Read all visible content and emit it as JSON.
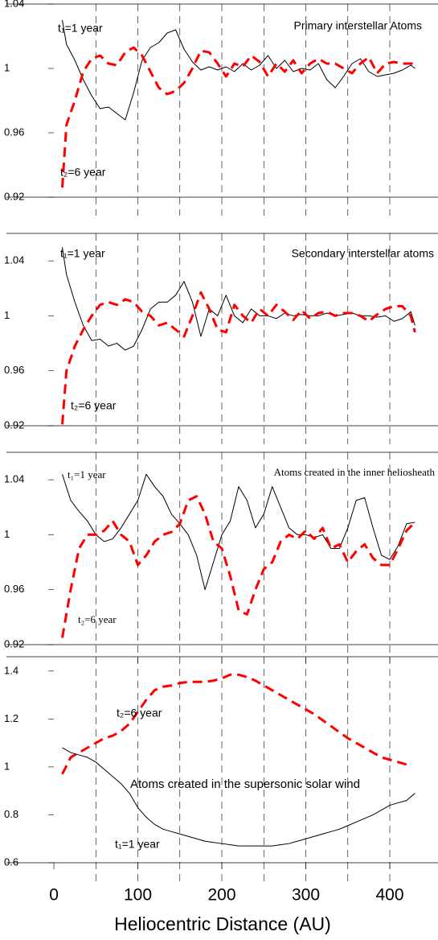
{
  "chart_data": [
    {
      "type": "line",
      "title": "Primary interstellar Atoms",
      "x": [
        10,
        15,
        25,
        35,
        45,
        55,
        65,
        75,
        85,
        95,
        105,
        115,
        125,
        135,
        145,
        155,
        165,
        175,
        185,
        195,
        205,
        215,
        225,
        235,
        245,
        255,
        265,
        275,
        285,
        295,
        305,
        315,
        325,
        335,
        345,
        355,
        365,
        375,
        385,
        395,
        405,
        415,
        425,
        430
      ],
      "series": [
        {
          "name": "t₁=1 year",
          "color": "#000000",
          "dashed": false,
          "values": [
            1.03,
            1.015,
            1.005,
            0.993,
            0.983,
            0.975,
            0.976,
            0.972,
            0.968,
            0.985,
            1.005,
            1.013,
            1.016,
            1.022,
            1.024,
            1.012,
            1.004,
            0.999,
            1.001,
            0.999,
            1.001,
            0.998,
            1.003,
            0.999,
            1.002,
            1.008,
            1.0,
            1.005,
            0.998,
            1.0,
            0.999,
            1.003,
            0.993,
            0.988,
            0.995,
            1.003,
            1.006,
            0.998,
            0.995,
            0.996,
            0.997,
            0.999,
            1.002,
            1.0
          ]
        },
        {
          "name": "t₂=6 year",
          "color": "#ff0000",
          "dashed": true,
          "values": [
            0.926,
            0.965,
            0.98,
            0.998,
            1.006,
            1.008,
            1.003,
            1.002,
            1.01,
            1.013,
            1.008,
            0.998,
            0.988,
            0.984,
            0.986,
            0.991,
            1.0,
            1.011,
            1.01,
            1.003,
            0.995,
            1.003,
            1.001,
            1.008,
            1.004,
            0.995,
            1.003,
            0.998,
            1.005,
            0.997,
            1.003,
            1.006,
            1.003,
            1.003,
            1.0,
            0.997,
            1.003,
            1.007,
            0.997,
            1.003,
            1.004,
            1.003,
            1.003,
            1.003
          ]
        }
      ],
      "xlim": [
        -56.5,
        457.4
      ],
      "ylim": [
        0.92,
        1.04
      ],
      "yticks": [
        0.92,
        0.96,
        1,
        1.04
      ],
      "xgrid": [
        50,
        100,
        150,
        200,
        250,
        300,
        350,
        400
      ]
    },
    {
      "type": "line",
      "title": "Secondary interstellar atoms",
      "x": [
        10,
        15,
        25,
        35,
        45,
        55,
        65,
        75,
        85,
        95,
        105,
        115,
        125,
        135,
        145,
        155,
        165,
        175,
        185,
        195,
        205,
        215,
        225,
        235,
        245,
        255,
        265,
        275,
        285,
        295,
        305,
        315,
        325,
        335,
        345,
        355,
        365,
        375,
        385,
        395,
        405,
        415,
        425,
        430
      ],
      "series": [
        {
          "name": "t₁=1 year",
          "color": "#000000",
          "dashed": false,
          "values": [
            1.05,
            1.03,
            1.01,
            0.993,
            0.982,
            0.983,
            0.978,
            0.98,
            0.975,
            0.978,
            0.99,
            1.005,
            1.01,
            1.01,
            1.015,
            1.025,
            1.01,
            0.985,
            1.005,
            1.0,
            1.015,
            1.0,
            0.995,
            1.005,
            1.0,
            1.0,
            0.998,
            1.002,
            1.0,
            1.001,
            1.0,
            1.0,
            1.002,
            1.0,
            1.001,
            1.002,
            1.0,
            1.0,
            0.999,
            1.0,
            0.996,
            0.998,
            1.003,
            0.993
          ]
        },
        {
          "name": "t₂=6 year",
          "color": "#ff0000",
          "dashed": true,
          "values": [
            0.921,
            0.96,
            0.978,
            0.99,
            1.0,
            1.008,
            1.01,
            1.008,
            1.012,
            1.01,
            1.003,
            1.0,
            0.993,
            0.995,
            0.99,
            0.985,
            1.0,
            1.017,
            1.005,
            0.99,
            0.988,
            1.008,
            1.0,
            0.995,
            1.005,
            1.0,
            1.008,
            1.003,
            0.997,
            1.004,
            0.998,
            1.002,
            1.003,
            1.0,
            1.002,
            1.002,
            1.0,
            0.996,
            1.001,
            1.005,
            1.007,
            1.007,
            1.0,
            0.988
          ]
        }
      ],
      "xlim": [
        -56.5,
        457.4
      ],
      "ylim": [
        0.92,
        1.06
      ],
      "yticks": [
        0.92,
        0.96,
        1,
        1.04
      ],
      "xgrid": [
        50,
        100,
        150,
        200,
        250,
        300,
        350,
        400
      ]
    },
    {
      "type": "line",
      "title": "Atoms created in the inner heliosheath",
      "x": [
        10,
        20,
        30,
        40,
        50,
        60,
        70,
        80,
        90,
        100,
        110,
        120,
        130,
        140,
        150,
        160,
        170,
        180,
        190,
        200,
        210,
        220,
        230,
        240,
        250,
        260,
        270,
        280,
        290,
        300,
        310,
        320,
        330,
        340,
        350,
        360,
        370,
        380,
        390,
        400,
        410,
        420,
        430
      ],
      "series": [
        {
          "name": "t₁=1 year",
          "color": "#000000",
          "dashed": false,
          "values": [
            1.044,
            1.025,
            1.017,
            1.01,
            1.0,
            0.995,
            0.997,
            1.005,
            1.015,
            1.025,
            1.044,
            1.035,
            1.028,
            1.015,
            1.008,
            1.0,
            0.985,
            0.96,
            0.98,
            1.0,
            1.01,
            1.035,
            1.025,
            1.005,
            1.015,
            1.035,
            1.02,
            1.005,
            1.0,
            1.0,
            0.998,
            1.0,
            0.99,
            0.99,
            1.005,
            1.025,
            1.027,
            1.005,
            0.985,
            0.982,
            0.992,
            1.008,
            1.009
          ]
        },
        {
          "name": "t₂=6 year",
          "color": "#ff0000",
          "dashed": true,
          "values": [
            0.925,
            0.96,
            0.99,
            1.0,
            1.0,
            1.003,
            1.01,
            1.0,
            0.995,
            0.978,
            0.985,
            0.995,
            1.0,
            1.002,
            1.008,
            1.025,
            1.028,
            1.015,
            0.995,
            0.99,
            0.97,
            0.945,
            0.942,
            0.96,
            0.975,
            0.98,
            0.995,
            1.0,
            0.997,
            1.003,
            0.997,
            1.005,
            0.99,
            0.993,
            0.98,
            0.988,
            0.993,
            0.983,
            0.978,
            0.978,
            0.99,
            1.003,
            1.009
          ]
        }
      ],
      "xlim": [
        -56.5,
        457.4
      ],
      "ylim": [
        0.92,
        1.06
      ],
      "yticks": [
        0.92,
        0.96,
        1,
        1.04
      ],
      "xgrid": [
        50,
        100,
        150,
        200,
        250,
        300,
        350,
        400
      ]
    },
    {
      "type": "line",
      "title": "Atoms created in the supersonic solar wind",
      "xlabel": "Heliocentric Distance (AU)",
      "x": [
        10,
        20,
        30,
        40,
        50,
        60,
        70,
        80,
        90,
        100,
        110,
        120,
        130,
        140,
        150,
        160,
        170,
        180,
        190,
        200,
        210,
        220,
        230,
        240,
        250,
        260,
        270,
        280,
        290,
        300,
        310,
        320,
        330,
        340,
        350,
        360,
        370,
        380,
        390,
        400,
        410,
        420,
        430
      ],
      "series": [
        {
          "name": "t₂=6 year",
          "color": "#ff0000",
          "dashed": true,
          "values": [
            0.97,
            1.04,
            1.06,
            1.08,
            1.1,
            1.12,
            1.13,
            1.15,
            1.18,
            1.23,
            1.28,
            1.32,
            1.335,
            1.34,
            1.35,
            1.355,
            1.355,
            1.355,
            1.36,
            1.37,
            1.385,
            1.385,
            1.375,
            1.36,
            1.34,
            1.32,
            1.3,
            1.28,
            1.26,
            1.24,
            1.22,
            1.195,
            1.17,
            1.145,
            1.12,
            1.1,
            1.08,
            1.06,
            1.04,
            1.03,
            1.02,
            1.01,
            null
          ]
        },
        {
          "name": "t₁=1 year",
          "color": "#000000",
          "dashed": false,
          "values": [
            1.08,
            1.06,
            1.05,
            1.04,
            1.02,
            0.99,
            0.96,
            0.93,
            0.89,
            0.83,
            0.79,
            0.76,
            0.74,
            0.73,
            0.72,
            0.71,
            0.7,
            0.69,
            0.685,
            0.68,
            0.675,
            0.67,
            0.67,
            0.67,
            0.67,
            0.67,
            0.675,
            0.68,
            0.69,
            0.7,
            0.71,
            0.72,
            0.73,
            0.74,
            0.755,
            0.77,
            0.785,
            0.8,
            0.82,
            0.84,
            0.85,
            0.86,
            0.89
          ]
        }
      ],
      "xlim": [
        -56.5,
        457.4
      ],
      "ylim": [
        0.6,
        1.46
      ],
      "yticks": [
        0.6,
        0.8,
        1,
        1.2,
        1.4
      ],
      "xticks": [
        0,
        100,
        200,
        300,
        400
      ],
      "xgrid": [
        50,
        100,
        150,
        200,
        250,
        300,
        350,
        400
      ]
    }
  ]
}
